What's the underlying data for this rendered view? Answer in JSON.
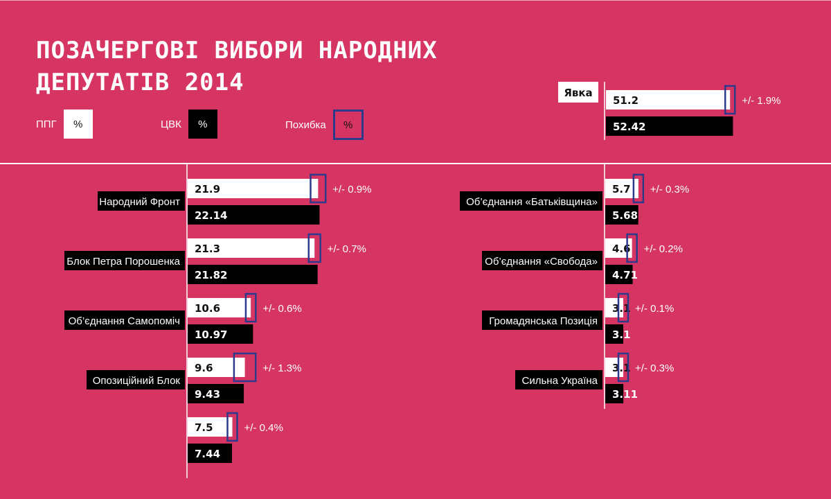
{
  "title_line1": "ПОЗАЧЕРГОВІ ВИБОРИ НАРОДНИХ",
  "title_line2": "ДЕПУТАТІВ 2014",
  "legend": {
    "ppg_label": "ППГ",
    "ppg_symbol": "%",
    "cvk_label": "ЦВК",
    "cvk_symbol": "%",
    "error_label": "Похибка",
    "error_symbol": "%"
  },
  "colors": {
    "background": "#d63563",
    "exit_poll": "#ffffff",
    "official": "#000000",
    "error_box": "#2d3a8c"
  },
  "chart_data": {
    "type": "bar",
    "turnout": {
      "label": "Явка",
      "ppg": 51.2,
      "cvk": 52.42,
      "error": "+/- 1.9%"
    },
    "series": [
      {
        "name": "ППГ",
        "values": [
          21.9,
          21.3,
          10.6,
          9.6,
          7.5,
          5.7,
          4.6,
          3.1,
          3.1
        ]
      },
      {
        "name": "ЦВК",
        "values": [
          22.14,
          21.82,
          10.97,
          9.43,
          7.44,
          5.68,
          4.71,
          3.1,
          3.11
        ]
      }
    ],
    "parties": [
      {
        "name": "Народний Фронт",
        "ppg": "21.9",
        "cvk": "22.14",
        "error": "+/- 0.9%",
        "error_value": 0.9
      },
      {
        "name": "Блок Петра Порошенка",
        "ppg": "21.3",
        "cvk": "21.82",
        "error": "+/- 0.7%",
        "error_value": 0.7
      },
      {
        "name": "Об’єднання Самопоміч",
        "ppg": "10.6",
        "cvk": "10.97",
        "error": "+/- 0.6%",
        "error_value": 0.6
      },
      {
        "name": "Опозиційний Блок",
        "ppg": "9.6",
        "cvk": "9.43",
        "error": "+/- 1.3%",
        "error_value": 1.3
      },
      {
        "name": "",
        "ppg": "7.5",
        "cvk": "7.44",
        "error": "+/- 0.4%",
        "error_value": 0.4
      },
      {
        "name": "Об’єднання «Батьківщина»",
        "ppg": "5.7",
        "cvk": "5.68",
        "error": "+/- 0.3%",
        "error_value": 0.3
      },
      {
        "name": "Об’єднання «Свобода»",
        "ppg": "4.6",
        "cvk": "4.71",
        "error": "+/- 0.2%",
        "error_value": 0.2
      },
      {
        "name": "Громадянська Позиція",
        "ppg": "3.1",
        "cvk": "3.1",
        "error": "+/- 0.1%",
        "error_value": 0.1
      },
      {
        "name": "Сильна Україна",
        "ppg": "3.1",
        "cvk": "3.11",
        "error": "+/- 0.3%",
        "error_value": 0.3
      }
    ]
  }
}
